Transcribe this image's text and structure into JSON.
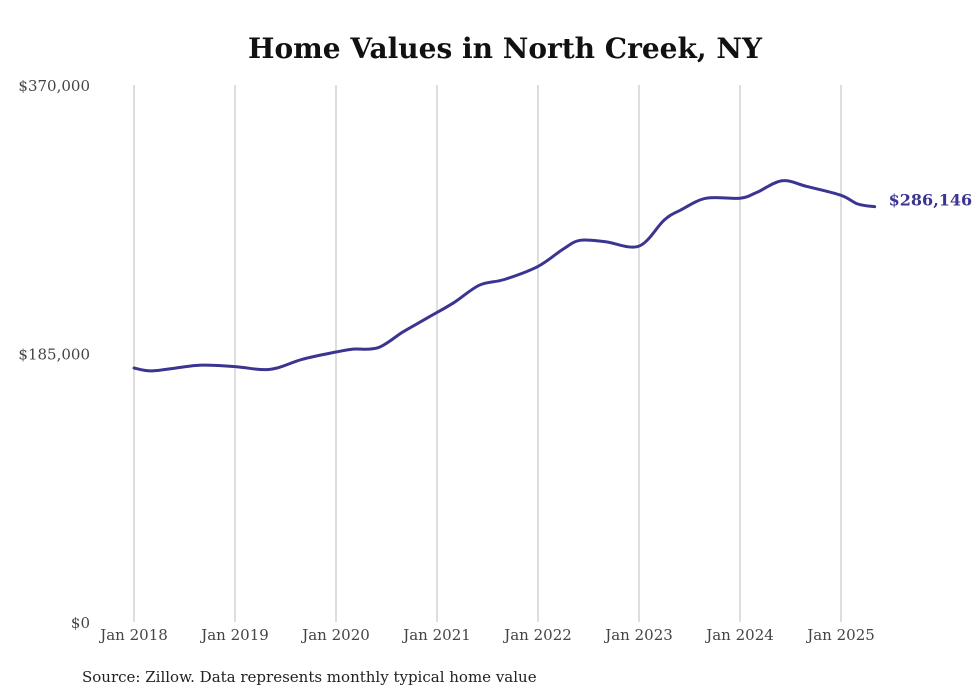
{
  "chart_data": {
    "type": "line",
    "title": "Home Values in North Creek, NY",
    "source": "Source: Zillow. Data represents monthly typical home value",
    "xlabel": "",
    "ylabel": "",
    "ylim": [
      0,
      370000
    ],
    "yticks": [
      0,
      185000,
      370000
    ],
    "ytick_labels": [
      "$0",
      "$185,000",
      "$370,000"
    ],
    "xticks": [
      "2018-01",
      "2019-01",
      "2020-01",
      "2021-01",
      "2022-01",
      "2023-01",
      "2024-01",
      "2025-01"
    ],
    "xtick_labels": [
      "Jan 2018",
      "Jan 2019",
      "Jan 2020",
      "Jan 2021",
      "Jan 2022",
      "Jan 2023",
      "Jan 2024",
      "Jan 2025"
    ],
    "grid": "vertical",
    "line_color": "#3b3591",
    "end_label": "$286,146",
    "series": [
      {
        "x": [
          "2018-01",
          "2018-03",
          "2018-06",
          "2018-09",
          "2019-01",
          "2019-04",
          "2019-06",
          "2019-09",
          "2020-01",
          "2020-03",
          "2020-06",
          "2020-09",
          "2020-12",
          "2021-03",
          "2021-06",
          "2021-09",
          "2022-01",
          "2022-04",
          "2022-06",
          "2022-09",
          "2023-01",
          "2023-04",
          "2023-06",
          "2023-09",
          "2024-01",
          "2024-03",
          "2024-06",
          "2024-09",
          "2025-01",
          "2025-03",
          "2025-05"
        ],
        "values": [
          175000,
          173000,
          175000,
          177000,
          176000,
          174000,
          175000,
          181000,
          186000,
          188000,
          189000,
          200000,
          210000,
          220000,
          232000,
          236000,
          245000,
          257000,
          263000,
          262000,
          259000,
          277000,
          284000,
          292000,
          292000,
          296000,
          304000,
          300000,
          294000,
          288000,
          286146
        ]
      }
    ]
  }
}
